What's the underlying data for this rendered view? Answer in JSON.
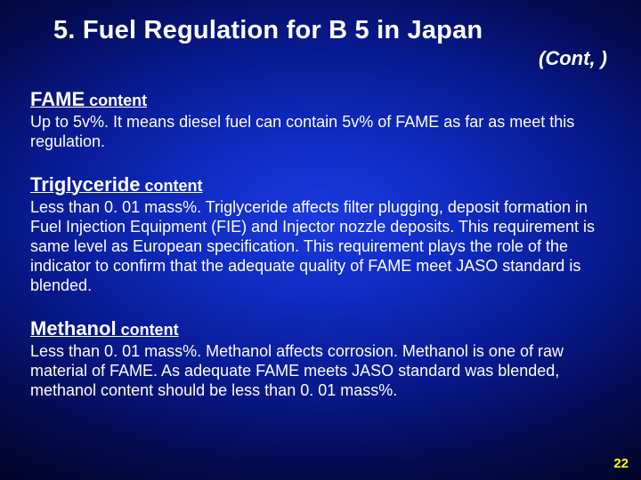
{
  "colors": {
    "background_gradient": [
      "#1a3ae0",
      "#0f2bc0",
      "#081a90",
      "#030b50",
      "#010320"
    ],
    "text_color": "#ffffff",
    "page_number_color": "#ffff00"
  },
  "typography": {
    "font_family": "Arial, Helvetica, sans-serif",
    "title_fontsize": 29,
    "cont_fontsize": 22,
    "heading_main_fontsize": 22,
    "heading_sub_fontsize": 18,
    "body_fontsize": 18,
    "page_number_fontsize": 15
  },
  "slide": {
    "title": "5. Fuel Regulation for B 5 in Japan",
    "continuation": "(Cont, )",
    "sections": [
      {
        "heading_main": "FAME",
        "heading_sub": " content",
        "body": "Up to 5v%. It means diesel fuel can contain 5v% of FAME as far as meet this regulation."
      },
      {
        "heading_main": "Triglyceride",
        "heading_sub": " content",
        "body": "Less than 0. 01 mass%. Triglyceride affects filter plugging, deposit formation in Fuel Injection Equipment (FIE) and Injector nozzle deposits. This requirement is same level as European specification. This requirement plays the role of the indicator to confirm that the adequate quality of FAME meet JASO standard is blended."
      },
      {
        "heading_main": "Methanol",
        "heading_sub": " content",
        "body": "Less than 0. 01 mass%. Methanol affects corrosion. Methanol is one of raw material of FAME. As adequate FAME meets JASO standard was blended, methanol content should be less than 0. 01 mass%."
      }
    ],
    "page_number": "22"
  }
}
